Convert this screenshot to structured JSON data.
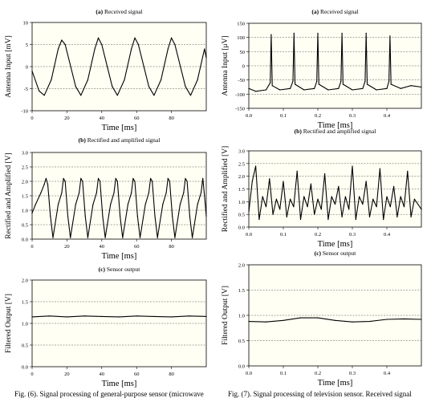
{
  "fig_left": {
    "caption": "Fig. (6). Signal processing of general-purpose sensor (microwave",
    "panels": [
      {
        "title_letter": "(a)",
        "title_text": " Received signal",
        "type": "line",
        "ylabel": "Antenna Input [mV]",
        "xlabel": "Time [ms]",
        "xlim": [
          0,
          100
        ],
        "ylim": [
          -10,
          10
        ],
        "xticks": [
          "0",
          "20",
          "40",
          "60",
          "80"
        ],
        "xtick_vals": [
          0,
          20,
          40,
          60,
          80
        ],
        "yticks": [
          "-10",
          "-5",
          "0",
          "5",
          "10"
        ],
        "ytick_vals": [
          -10,
          -5,
          0,
          5,
          10
        ],
        "grid_y": [
          -5,
          0,
          5
        ]
      },
      {
        "title_letter": "(b)",
        "title_text": " Rectified and amplified signal",
        "type": "line",
        "ylabel": "Rectified and Amplified [V]",
        "xlabel": "Time [ms]",
        "xlim": [
          0,
          100
        ],
        "ylim": [
          0,
          3.0
        ],
        "xticks": [
          "0",
          "20",
          "40",
          "60",
          "80"
        ],
        "xtick_vals": [
          0,
          20,
          40,
          60,
          80
        ],
        "yticks": [
          "0.0",
          "0.5",
          "1.0",
          "1.5",
          "2.0",
          "2.5",
          "3.0"
        ],
        "ytick_vals": [
          0,
          0.5,
          1,
          1.5,
          2,
          2.5,
          3
        ],
        "grid_y": [
          0.5,
          1.0,
          1.5,
          2.0,
          2.5
        ]
      },
      {
        "title_letter": "(c)",
        "title_text": " Sensor output",
        "type": "line",
        "ylabel": "Filtered Output [V]",
        "xlabel": "Time [ms]",
        "xlim": [
          0,
          100
        ],
        "ylim": [
          0,
          2.0
        ],
        "xticks": [
          "0",
          "20",
          "40",
          "60",
          "80"
        ],
        "xtick_vals": [
          0,
          20,
          40,
          60,
          80
        ],
        "yticks": [
          "0.0",
          "0.5",
          "1.0",
          "1.5",
          "2.0"
        ],
        "ytick_vals": [
          0,
          0.5,
          1,
          1.5,
          2
        ],
        "grid_y": [
          0.5,
          1.0,
          1.5
        ]
      }
    ]
  },
  "fig_right": {
    "caption": "Fig. (7). Signal processing of television sensor. Received signal",
    "panels": [
      {
        "title_letter": "(a)",
        "title_text": " Received signal",
        "type": "line",
        "ylabel": "Antenna Input [μV]",
        "xlabel": "Time [ms]",
        "xlim": [
          0,
          0.5
        ],
        "ylim": [
          -150,
          150
        ],
        "xticks": [
          "0.0",
          "0.1",
          "0.2",
          "0.3",
          "0.4"
        ],
        "xtick_vals": [
          0,
          0.1,
          0.2,
          0.3,
          0.4
        ],
        "yticks": [
          "-150",
          "-100",
          "-50",
          "0",
          "50",
          "100",
          "150"
        ],
        "ytick_vals": [
          -150,
          -100,
          -50,
          0,
          50,
          100,
          150
        ],
        "grid_y": [
          -100,
          -50,
          0,
          50,
          100
        ]
      },
      {
        "title_letter": "(b)",
        "title_text": " Rectified and amplified signal",
        "type": "line",
        "ylabel": "Rectified and Amplified [V]",
        "xlabel": "Time [ms]",
        "xlim": [
          0,
          0.5
        ],
        "ylim": [
          0,
          3.0
        ],
        "xticks": [
          "0.0",
          "0.1",
          "0.2",
          "0.3",
          "0.4"
        ],
        "xtick_vals": [
          0,
          0.1,
          0.2,
          0.3,
          0.4
        ],
        "yticks": [
          "0.0",
          "0.5",
          "1.0",
          "1.5",
          "2.0",
          "2.5",
          "3.0"
        ],
        "ytick_vals": [
          0,
          0.5,
          1,
          1.5,
          2,
          2.5,
          3
        ],
        "grid_y": [
          0.5,
          1.0,
          1.5,
          2.0,
          2.5
        ]
      },
      {
        "title_letter": "(c)",
        "title_text": " Sensor output",
        "type": "line",
        "ylabel": "Filtered Output [V]",
        "xlabel": "Time [ms]",
        "xlim": [
          0,
          0.5
        ],
        "ylim": [
          0,
          2.0
        ],
        "xticks": [
          "0.0",
          "0.1",
          "0.2",
          "0.3",
          "0.4"
        ],
        "xtick_vals": [
          0,
          0.1,
          0.2,
          0.3,
          0.4
        ],
        "yticks": [
          "0.0",
          "0.5",
          "1.0",
          "1.5",
          "2.0"
        ],
        "ytick_vals": [
          0,
          0.5,
          1,
          1.5,
          2
        ],
        "grid_y": [
          0.5,
          1.0,
          1.5
        ]
      }
    ]
  },
  "chart_data": [
    {
      "type": "line",
      "title": "(a) Received signal",
      "xlabel": "Time [ms]",
      "ylabel": "Antenna Input [mV]",
      "xlim": [
        0,
        100
      ],
      "ylim": [
        -10,
        10
      ],
      "grid": true,
      "x": [
        0,
        4,
        7,
        11,
        15,
        17,
        19,
        25,
        28,
        32,
        36,
        38,
        40,
        46,
        49,
        53,
        57,
        59,
        61,
        67,
        70,
        74,
        78,
        80,
        82,
        88,
        91,
        95,
        99,
        100
      ],
      "y": [
        -1,
        -5.5,
        -6.5,
        -3,
        4,
        6,
        5,
        -4.5,
        -6.5,
        -3,
        4,
        6.5,
        5,
        -4.5,
        -6.5,
        -3,
        4,
        6.5,
        5,
        -4.5,
        -6.5,
        -3,
        4,
        6.5,
        5,
        -4.5,
        -6.5,
        -3,
        4,
        2
      ]
    },
    {
      "type": "line",
      "title": "(b) Rectified and amplified signal",
      "xlabel": "Time [ms]",
      "ylabel": "Rectified and Amplified [V]",
      "xlim": [
        0,
        100
      ],
      "ylim": [
        0,
        3.0
      ],
      "grid": true,
      "x": [
        0,
        2,
        5,
        7,
        8,
        9,
        10.5,
        12,
        15,
        17,
        18,
        19,
        20.5,
        22,
        25,
        27,
        28,
        29,
        30.5,
        32,
        35,
        37,
        38,
        39,
        40.5,
        42,
        45,
        47,
        48,
        49,
        50.5,
        52,
        55,
        57,
        58,
        59,
        60.5,
        62,
        65,
        67,
        68,
        69,
        70.5,
        72,
        75,
        77,
        78,
        79,
        80.5,
        82,
        85,
        87,
        88,
        89,
        90.5,
        92,
        95,
        97,
        98,
        99,
        100
      ],
      "y": [
        0.9,
        1.2,
        1.6,
        1.9,
        2.1,
        1.9,
        0.8,
        0.05,
        1.2,
        1.6,
        2.1,
        2.0,
        0.8,
        0.05,
        1.2,
        1.6,
        2.1,
        2.0,
        0.8,
        0.05,
        1.2,
        1.6,
        2.1,
        2.0,
        0.8,
        0.05,
        1.2,
        1.6,
        2.1,
        2.0,
        0.8,
        0.05,
        1.2,
        1.6,
        2.1,
        2.0,
        0.8,
        0.05,
        1.2,
        1.6,
        2.1,
        2.0,
        0.8,
        0.05,
        1.2,
        1.6,
        2.1,
        2.0,
        0.8,
        0.05,
        1.2,
        1.6,
        2.1,
        2.0,
        0.8,
        0.05,
        1.2,
        1.6,
        2.1,
        1.5,
        0.8
      ]
    },
    {
      "type": "line",
      "title": "(c) Sensor output",
      "xlabel": "Time [ms]",
      "ylabel": "Filtered Output [V]",
      "xlim": [
        0,
        100
      ],
      "ylim": [
        0,
        2.0
      ],
      "grid": true,
      "x": [
        0,
        10,
        20,
        30,
        40,
        50,
        60,
        70,
        80,
        90,
        100
      ],
      "y": [
        1.15,
        1.17,
        1.15,
        1.17,
        1.16,
        1.15,
        1.17,
        1.16,
        1.15,
        1.17,
        1.16
      ]
    },
    {
      "type": "line",
      "title": "(a) Received signal",
      "xlabel": "Time [ms]",
      "ylabel": "Antenna Input [μV]",
      "xlim": [
        0,
        0.5
      ],
      "ylim": [
        -150,
        150
      ],
      "grid": true,
      "x": [
        0,
        0.02,
        0.05,
        0.062,
        0.065,
        0.068,
        0.09,
        0.12,
        0.128,
        0.131,
        0.134,
        0.16,
        0.19,
        0.197,
        0.2,
        0.203,
        0.23,
        0.26,
        0.267,
        0.27,
        0.273,
        0.3,
        0.33,
        0.337,
        0.34,
        0.343,
        0.37,
        0.4,
        0.406,
        0.409,
        0.412,
        0.44,
        0.47,
        0.5
      ],
      "y": [
        -80,
        -90,
        -85,
        -60,
        110,
        -70,
        -85,
        -80,
        -55,
        115,
        -65,
        -85,
        -80,
        -55,
        115,
        -65,
        -85,
        -80,
        -55,
        115,
        -65,
        -85,
        -80,
        -55,
        115,
        -65,
        -85,
        -80,
        -55,
        105,
        -65,
        -80,
        -70,
        -75
      ]
    },
    {
      "type": "line",
      "title": "(b) Rectified and amplified signal",
      "xlabel": "Time [ms]",
      "ylabel": "Rectified and Amplified [V]",
      "xlim": [
        0,
        0.5
      ],
      "ylim": [
        0,
        3.0
      ],
      "grid": true,
      "x": [
        0,
        0.01,
        0.02,
        0.03,
        0.04,
        0.05,
        0.06,
        0.07,
        0.08,
        0.09,
        0.1,
        0.11,
        0.12,
        0.13,
        0.14,
        0.15,
        0.16,
        0.17,
        0.18,
        0.19,
        0.2,
        0.21,
        0.22,
        0.23,
        0.24,
        0.25,
        0.26,
        0.27,
        0.28,
        0.29,
        0.3,
        0.31,
        0.32,
        0.33,
        0.34,
        0.35,
        0.36,
        0.37,
        0.38,
        0.39,
        0.4,
        0.41,
        0.42,
        0.43,
        0.44,
        0.45,
        0.46,
        0.47,
        0.48,
        0.49,
        0.5
      ],
      "y": [
        0.6,
        1.8,
        2.4,
        0.3,
        1.2,
        0.8,
        1.9,
        0.5,
        1.1,
        0.7,
        1.8,
        0.4,
        1.1,
        0.8,
        2.2,
        0.3,
        1.2,
        0.8,
        1.7,
        0.5,
        1.1,
        0.7,
        2.1,
        0.3,
        1.2,
        0.9,
        1.6,
        0.4,
        1.2,
        0.7,
        2.4,
        0.3,
        1.2,
        0.9,
        1.8,
        0.4,
        1.1,
        0.8,
        2.3,
        0.3,
        1.2,
        0.8,
        1.6,
        0.4,
        1.2,
        0.8,
        2.2,
        0.4,
        1.1,
        0.9,
        0.7
      ]
    },
    {
      "type": "line",
      "title": "(c) Sensor output",
      "xlabel": "Time [ms]",
      "ylabel": "Filtered Output [V]",
      "xlim": [
        0,
        0.5
      ],
      "ylim": [
        0,
        2.0
      ],
      "grid": true,
      "x": [
        0,
        0.05,
        0.1,
        0.15,
        0.2,
        0.25,
        0.3,
        0.35,
        0.4,
        0.45,
        0.5
      ],
      "y": [
        0.88,
        0.87,
        0.9,
        0.95,
        0.95,
        0.9,
        0.87,
        0.88,
        0.92,
        0.93,
        0.92
      ]
    }
  ]
}
